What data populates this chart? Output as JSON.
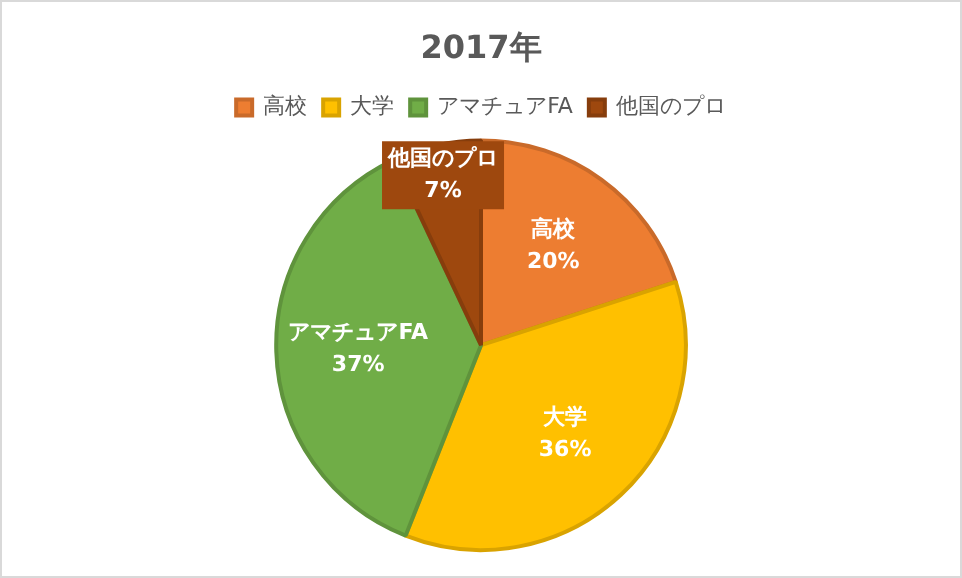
{
  "chart_data": {
    "type": "pie",
    "title": "2017年",
    "categories": [
      "高校",
      "大学",
      "アマチュアFA",
      "他国のプロ"
    ],
    "values": [
      20,
      36,
      37,
      7
    ],
    "value_labels": [
      "20%",
      "36%",
      "37%",
      "7%"
    ],
    "colors": [
      "#ed7d31",
      "#ffc000",
      "#70ad47",
      "#9e480e"
    ],
    "legend": "top"
  }
}
